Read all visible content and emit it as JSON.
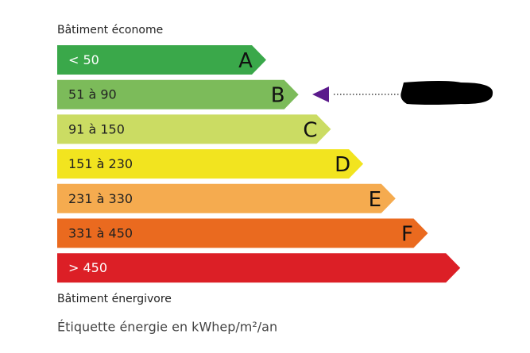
{
  "header": {
    "title": "Bâtiment économe"
  },
  "classes": [
    {
      "range": "< 50",
      "letter": "A",
      "color": "#3aa84a"
    },
    {
      "range": "51 à 90",
      "letter": "B",
      "color": "#7cbb5a"
    },
    {
      "range": "91 à 150",
      "letter": "C",
      "color": "#cbdc63"
    },
    {
      "range": "151 à 230",
      "letter": "D",
      "color": "#f2e41f"
    },
    {
      "range": "231 à 330",
      "letter": "E",
      "color": "#f5ab4f"
    },
    {
      "range": "331 à 450",
      "letter": "F",
      "color": "#ea6a1f"
    },
    {
      "range": "> 450",
      "color": "#dc1f26"
    }
  ],
  "footer": {
    "title": "Bâtiment énergivore",
    "caption": "Étiquette énergie en kWhep/m²/an"
  }
}
